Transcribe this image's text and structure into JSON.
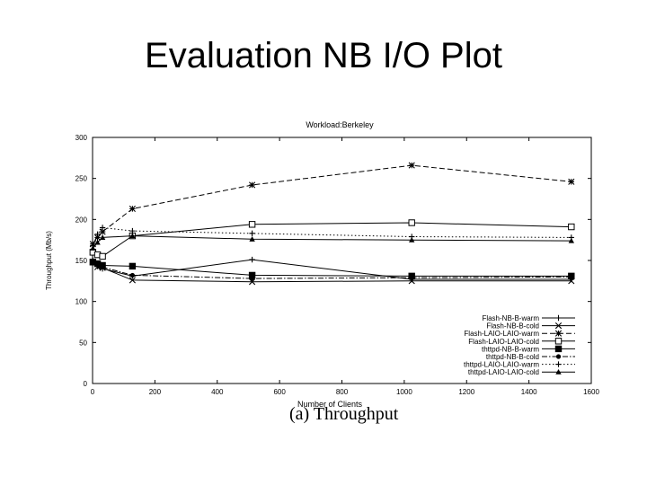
{
  "slide": {
    "title": "Evaluation NB I/O Plot",
    "caption": "(a) Throughput"
  },
  "chart_data": {
    "type": "line",
    "title": "Workload:Berkeley",
    "xlabel": "Number of Clients",
    "ylabel": "Throughput (Mb/s)",
    "xlim": [
      0,
      1600
    ],
    "ylim": [
      0,
      300
    ],
    "xticks": [
      0,
      200,
      400,
      600,
      800,
      1000,
      1200,
      1400,
      1600
    ],
    "yticks": [
      0,
      50,
      100,
      150,
      200,
      250,
      300
    ],
    "grid": false,
    "legend_position": "bottom-right",
    "series": [
      {
        "name": "Flash-NB-B-warm",
        "marker": "plus",
        "dash": "solid",
        "x": [
          1,
          16,
          32,
          128,
          512,
          1024,
          1536
        ],
        "y": [
          150,
          143,
          140,
          131,
          151,
          127,
          127
        ]
      },
      {
        "name": "Flash-NB-B-cold",
        "marker": "x",
        "dash": "solid",
        "x": [
          1,
          16,
          32,
          128,
          512,
          1024,
          1536
        ],
        "y": [
          148,
          142,
          141,
          126,
          124,
          125,
          125
        ]
      },
      {
        "name": "Flash-LAIO-LAIO-warm",
        "marker": "star",
        "dash": "dashed",
        "x": [
          1,
          16,
          32,
          128,
          512,
          1024,
          1536
        ],
        "y": [
          170,
          178,
          185,
          213,
          242,
          266,
          246
        ]
      },
      {
        "name": "Flash-LAIO-LAIO-cold",
        "marker": "open-square",
        "dash": "solid",
        "x": [
          1,
          16,
          32,
          128,
          512,
          1024,
          1536
        ],
        "y": [
          160,
          157,
          155,
          180,
          194,
          196,
          191
        ]
      },
      {
        "name": "thttpd-NB-B-warm",
        "marker": "filled-square",
        "dash": "solid",
        "x": [
          1,
          16,
          32,
          128,
          512,
          1024,
          1536
        ],
        "y": [
          148,
          146,
          144,
          143,
          132,
          131,
          131
        ]
      },
      {
        "name": "thttpd-NB-B-cold",
        "marker": "circle",
        "dash": "dashdot",
        "x": [
          1,
          16,
          32,
          128,
          512,
          1024,
          1536
        ],
        "y": [
          147,
          145,
          142,
          132,
          128,
          129,
          130
        ]
      },
      {
        "name": "thttpd-LAIO-LAIO-warm",
        "marker": "plus",
        "dash": "dotted",
        "x": [
          1,
          16,
          32,
          128,
          512,
          1024,
          1536
        ],
        "y": [
          168,
          182,
          190,
          186,
          183,
          179,
          178
        ]
      },
      {
        "name": "thttpd-LAIO-LAIO-cold",
        "marker": "triangle",
        "dash": "solid",
        "x": [
          1,
          16,
          32,
          128,
          512,
          1024,
          1536
        ],
        "y": [
          165,
          172,
          178,
          180,
          176,
          175,
          174
        ]
      }
    ]
  }
}
